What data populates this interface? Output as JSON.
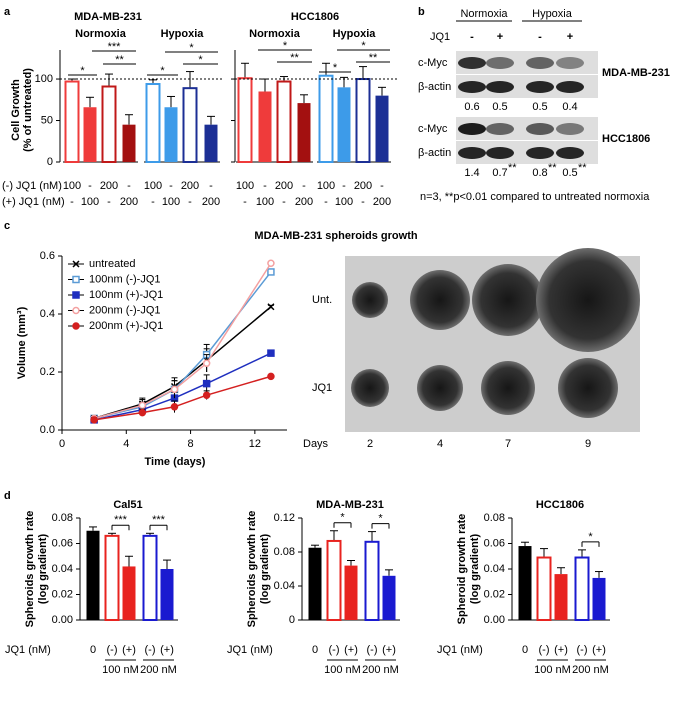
{
  "panels": [
    "a",
    "b",
    "c",
    "d"
  ],
  "blot": {
    "conditions": [
      "Normoxia",
      "Hypoxia"
    ],
    "treatment_label": "JQ1",
    "treatment": [
      "-",
      "+",
      "-",
      "+"
    ],
    "cell_lines": [
      {
        "name": "MDA-MB-231",
        "bands": [
          "c-Myc",
          "β-actin"
        ],
        "quant": [
          0.6,
          0.5,
          0.5,
          0.4
        ]
      },
      {
        "name": "HCC1806",
        "bands": [
          "c-Myc",
          "β-actin"
        ],
        "quant": [
          1.4,
          0.7,
          0.8,
          0.5
        ],
        "quant_marks": [
          null,
          "**",
          "**",
          "**"
        ]
      }
    ],
    "footnote": "n=3, **p<0.01 compared to untreated normoxia"
  },
  "spheroids": {
    "rows": [
      "Unt.",
      "JQ1"
    ],
    "axis_label": "Days",
    "days": [
      2,
      4,
      7,
      9
    ]
  },
  "chart_data": [
    {
      "type": "bar",
      "title": "MDA-MB-231",
      "ylabel": [
        "Cell Growth",
        "(% of untreated)"
      ],
      "ylim": [
        0,
        135
      ],
      "yticks": [
        0,
        50,
        100
      ],
      "show_tick_labels": true,
      "reference_line": 100,
      "groups": [
        {
          "name": "Normoxia",
          "values": [
            97,
            66,
            91,
            45
          ],
          "errors": [
            3,
            12,
            15,
            12
          ],
          "colors": [
            "#ef3b3b",
            "#ef3b3b",
            "#c01818",
            "#a31010"
          ],
          "filled": [
            false,
            true,
            false,
            true
          ]
        },
        {
          "name": "Hypoxia",
          "values": [
            94,
            66,
            89,
            45
          ],
          "errors": [
            5,
            13,
            20,
            10
          ],
          "colors": [
            "#3d9be9",
            "#3d9be9",
            "#1c2f95",
            "#1c2f95"
          ],
          "filled": [
            false,
            true,
            false,
            true
          ]
        }
      ],
      "significance": [
        "*",
        "***",
        "**",
        "*",
        "*",
        "*"
      ],
      "table": {
        "rows": [
          {
            "label": "(-) JQ1 (nM)",
            "cells": [
              100,
              "-",
              200,
              "-",
              100,
              "-",
              200,
              "-"
            ]
          },
          {
            "label": "(+) JQ1 (nM)",
            "cells": [
              "-",
              100,
              "-",
              200,
              "-",
              100,
              "-",
              200
            ]
          }
        ]
      }
    },
    {
      "type": "bar",
      "title": "HCC1806",
      "ylim": [
        0,
        135
      ],
      "yticks": [
        0,
        50,
        100
      ],
      "show_tick_labels": false,
      "reference_line": 100,
      "groups": [
        {
          "name": "Normoxia",
          "values": [
            101,
            85,
            97,
            71
          ],
          "errors": [
            18,
            15,
            6,
            10
          ],
          "colors": [
            "#ef3b3b",
            "#ef3b3b",
            "#c01818",
            "#a31010"
          ],
          "filled": [
            false,
            true,
            false,
            true
          ]
        },
        {
          "name": "Hypoxia",
          "values": [
            104,
            90,
            100,
            80
          ],
          "errors": [
            15,
            12,
            15,
            10
          ],
          "colors": [
            "#3d9be9",
            "#3d9be9",
            "#1c2f95",
            "#1c2f95"
          ],
          "filled": [
            false,
            true,
            false,
            true
          ]
        }
      ],
      "significance": [
        "*",
        "**",
        "*",
        "*",
        "**"
      ],
      "table": {
        "rows": [
          {
            "cells": [
              100,
              "-",
              200,
              "-",
              100,
              "-",
              200,
              "-"
            ]
          },
          {
            "cells": [
              "-",
              100,
              "-",
              200,
              "-",
              100,
              "-",
              200
            ]
          }
        ]
      }
    },
    {
      "type": "line",
      "title": "MDA-MB-231 spheroids growth",
      "xlabel": "Time (days)",
      "ylabel": "Volume (mm³)",
      "x": [
        2,
        5,
        7,
        9,
        13
      ],
      "xlim": [
        0,
        14
      ],
      "xticks": [
        0,
        4,
        8,
        12
      ],
      "ylim": [
        0,
        0.6
      ],
      "yticks": [
        {
          "value": 0,
          "label": "0.0"
        },
        0.2,
        0.4,
        0.6
      ],
      "legend": "upper left",
      "series": [
        {
          "name": "untreated",
          "color": "#000000",
          "marker": "x",
          "filled": true,
          "values": [
            0.04,
            0.09,
            0.15,
            0.24,
            0.425
          ],
          "errors": [
            0.01,
            0.02,
            0.03,
            0.04,
            0.005
          ]
        },
        {
          "name": "100nm (-)-JQ1",
          "color": "#5b9bd5",
          "marker": "square",
          "filled": false,
          "values": [
            0.04,
            0.08,
            0.14,
            0.26,
            0.545
          ],
          "errors": [
            0.01,
            0.015,
            0.03,
            0.035,
            0.005
          ]
        },
        {
          "name": "100nm (+)-JQ1",
          "color": "#1f2fbf",
          "marker": "square",
          "filled": true,
          "values": [
            0.035,
            0.07,
            0.11,
            0.16,
            0.265
          ],
          "errors": [
            0.008,
            0.015,
            0.02,
            0.03,
            0.004
          ]
        },
        {
          "name": "200nm (-)-JQ1",
          "color": "#f4a0a0",
          "marker": "circle",
          "filled": false,
          "values": [
            0.04,
            0.085,
            0.14,
            0.23,
            0.575
          ],
          "errors": [
            0.01,
            0.02,
            0.03,
            0.03,
            0.005
          ]
        },
        {
          "name": "200nm (+)-JQ1",
          "color": "#d42020",
          "marker": "circle",
          "filled": true,
          "values": [
            0.035,
            0.06,
            0.08,
            0.12,
            0.185
          ],
          "errors": [
            0.008,
            0.012,
            0.02,
            0.015,
            0.004
          ]
        }
      ]
    },
    {
      "type": "bar",
      "title": "Cal51",
      "ylabel": [
        "Spheroids growth rate",
        "(log gradient)"
      ],
      "xlabel": "JQ1 (nM)",
      "categories": [
        "0",
        "(-)",
        "(+)",
        "(-)",
        "(+)"
      ],
      "subgroups": [
        "100 nM",
        "200 nM"
      ],
      "values": [
        0.07,
        0.066,
        0.042,
        0.066,
        0.04
      ],
      "errors": [
        0.003,
        0.002,
        0.008,
        0.002,
        0.007
      ],
      "colors": [
        "#000000",
        "#e8231f",
        "#e8231f",
        "#1a1ad0",
        "#1a1ad0"
      ],
      "filled": [
        true,
        false,
        true,
        false,
        true
      ],
      "ylim": [
        0,
        0.08
      ],
      "yticks": [
        {
          "value": 0,
          "label": "0.00"
        },
        0.02,
        0.04,
        0.06,
        0.08
      ],
      "significance": [
        "***",
        "***"
      ]
    },
    {
      "type": "bar",
      "title": "MDA-MB-231",
      "ylabel": [
        "Spheroids growth rate",
        "(log gradient)"
      ],
      "xlabel": "JQ1 (nM)",
      "categories": [
        "0",
        "(-)",
        "(+)",
        "(-)",
        "(+)"
      ],
      "subgroups": [
        "100 nM",
        "200 nM"
      ],
      "values": [
        0.085,
        0.093,
        0.064,
        0.092,
        0.052
      ],
      "errors": [
        0.003,
        0.012,
        0.006,
        0.012,
        0.007
      ],
      "colors": [
        "#000000",
        "#e8231f",
        "#e8231f",
        "#1a1ad0",
        "#1a1ad0"
      ],
      "filled": [
        true,
        false,
        true,
        false,
        true
      ],
      "ylim": [
        0,
        0.12
      ],
      "yticks": [
        0,
        0.04,
        0.08,
        0.12
      ],
      "significance": [
        "*",
        "*"
      ]
    },
    {
      "type": "bar",
      "title": "HCC1806",
      "ylabel": [
        "Spheroid growth rate",
        "(log gradient)"
      ],
      "xlabel": "JQ1 (nM)",
      "categories": [
        "0",
        "(-)",
        "(+)",
        "(-)",
        "(+)"
      ],
      "subgroups": [
        "100 nM",
        "200 nM"
      ],
      "values": [
        0.058,
        0.049,
        0.036,
        0.049,
        0.033
      ],
      "errors": [
        0.003,
        0.007,
        0.005,
        0.006,
        0.005
      ],
      "colors": [
        "#000000",
        "#e8231f",
        "#e8231f",
        "#1a1ad0",
        "#1a1ad0"
      ],
      "filled": [
        true,
        false,
        true,
        false,
        true
      ],
      "ylim": [
        0,
        0.08
      ],
      "yticks": [
        {
          "value": 0,
          "label": "0.00"
        },
        0.02,
        0.04,
        0.06,
        0.08
      ],
      "significance": [
        "*"
      ]
    }
  ]
}
